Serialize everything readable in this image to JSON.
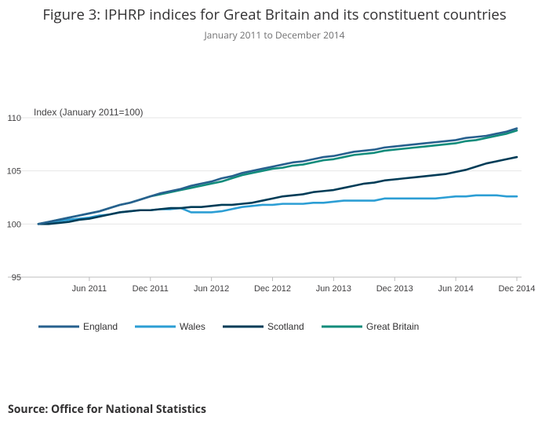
{
  "title": "Figure 3: IPHRP indices for Great Britain and its constituent countries",
  "subtitle": "January 2011 to December 2014",
  "source": "Source: Office for National Statistics",
  "chart_data": {
    "type": "line",
    "title": "Figure 3: IPHRP indices for Great Britain and its constituent countries",
    "subtitle": "January 2011 to December 2014",
    "ylabel": "Index (January 2011=100)",
    "xlabel": "",
    "ylim": [
      95,
      110
    ],
    "yticks": [
      95,
      100,
      105,
      110
    ],
    "grid": true,
    "legend_position": "bottom",
    "x_tick_labels": [
      "Jun 2011",
      "Dec 2011",
      "Jun 2012",
      "Dec 2012",
      "Jun 2013",
      "Dec 2013",
      "Jun 2014",
      "Dec 2014"
    ],
    "x_tick_index": [
      5,
      11,
      17,
      23,
      29,
      35,
      41,
      47
    ],
    "series": [
      {
        "name": "England",
        "color": "#27608e",
        "values": [
          100.0,
          100.2,
          100.4,
          100.6,
          100.8,
          101.0,
          101.2,
          101.5,
          101.8,
          102.0,
          102.3,
          102.6,
          102.9,
          103.1,
          103.3,
          103.6,
          103.8,
          104.0,
          104.3,
          104.5,
          104.8,
          105.0,
          105.2,
          105.4,
          105.6,
          105.8,
          105.9,
          106.1,
          106.3,
          106.4,
          106.6,
          106.8,
          106.9,
          107.0,
          107.2,
          107.3,
          107.4,
          107.5,
          107.6,
          107.7,
          107.8,
          107.9,
          108.1,
          108.2,
          108.3,
          108.5,
          108.7,
          109.0
        ]
      },
      {
        "name": "Wales",
        "color": "#2c9ed4",
        "values": [
          100.0,
          100.1,
          100.3,
          100.4,
          100.5,
          100.6,
          100.8,
          100.9,
          101.1,
          101.2,
          101.3,
          101.3,
          101.4,
          101.4,
          101.5,
          101.1,
          101.1,
          101.1,
          101.2,
          101.4,
          101.6,
          101.7,
          101.8,
          101.8,
          101.9,
          101.9,
          101.9,
          102.0,
          102.0,
          102.1,
          102.2,
          102.2,
          102.2,
          102.2,
          102.4,
          102.4,
          102.4,
          102.4,
          102.4,
          102.4,
          102.5,
          102.6,
          102.6,
          102.7,
          102.7,
          102.7,
          102.6,
          102.6
        ]
      },
      {
        "name": "Scotland",
        "color": "#003c57",
        "values": [
          100.0,
          100.0,
          100.1,
          100.2,
          100.4,
          100.5,
          100.7,
          100.9,
          101.1,
          101.2,
          101.3,
          101.3,
          101.4,
          101.5,
          101.5,
          101.6,
          101.6,
          101.7,
          101.8,
          101.8,
          101.9,
          102.0,
          102.2,
          102.4,
          102.6,
          102.7,
          102.8,
          103.0,
          103.1,
          103.2,
          103.4,
          103.6,
          103.8,
          103.9,
          104.1,
          104.2,
          104.3,
          104.4,
          104.5,
          104.6,
          104.7,
          104.9,
          105.1,
          105.4,
          105.7,
          105.9,
          106.1,
          106.3
        ]
      },
      {
        "name": "Great Britain",
        "color": "#118c7b",
        "values": [
          100.0,
          100.2,
          100.4,
          100.6,
          100.8,
          101.0,
          101.2,
          101.5,
          101.8,
          102.0,
          102.3,
          102.6,
          102.8,
          103.0,
          103.2,
          103.4,
          103.6,
          103.8,
          104.0,
          104.3,
          104.6,
          104.8,
          105.0,
          105.2,
          105.3,
          105.5,
          105.6,
          105.8,
          106.0,
          106.1,
          106.3,
          106.5,
          106.6,
          106.7,
          106.9,
          107.0,
          107.1,
          107.2,
          107.3,
          107.4,
          107.5,
          107.6,
          107.8,
          107.9,
          108.1,
          108.3,
          108.5,
          108.8
        ]
      }
    ]
  }
}
